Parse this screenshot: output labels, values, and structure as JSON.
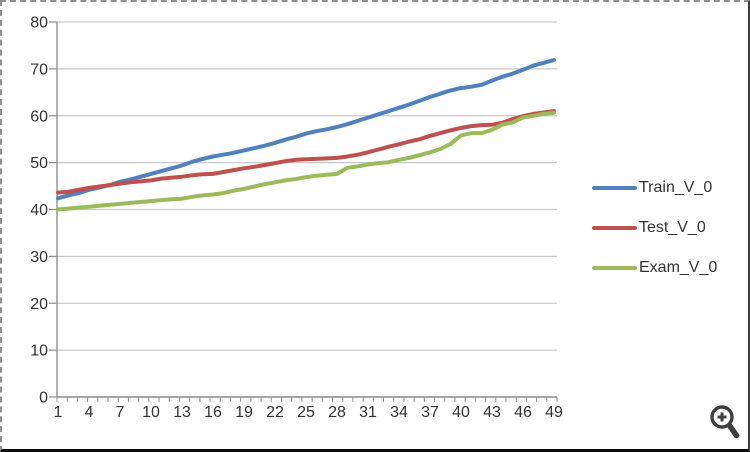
{
  "chart_data": {
    "type": "line",
    "title": "",
    "xlabel": "",
    "ylabel": "",
    "x": [
      1,
      2,
      3,
      4,
      5,
      6,
      7,
      8,
      9,
      10,
      11,
      12,
      13,
      14,
      15,
      16,
      17,
      18,
      19,
      20,
      21,
      22,
      23,
      24,
      25,
      26,
      27,
      28,
      29,
      30,
      31,
      32,
      33,
      34,
      35,
      36,
      37,
      38,
      39,
      40,
      41,
      42,
      43,
      44,
      45,
      46,
      47,
      48,
      49
    ],
    "x_tick_labels": [
      "1",
      "4",
      "7",
      "10",
      "13",
      "16",
      "19",
      "22",
      "25",
      "28",
      "31",
      "34",
      "37",
      "40",
      "43",
      "46",
      "49"
    ],
    "x_tick_step": 3,
    "y_ticks": [
      0,
      10,
      20,
      30,
      40,
      50,
      60,
      70,
      80
    ],
    "ylim": [
      0,
      80
    ],
    "grid": true,
    "legend_position": "right",
    "series": [
      {
        "name": "Train_V_0",
        "color": "#4F81BD",
        "values": [
          42.4,
          43.0,
          43.5,
          44.2,
          44.7,
          45.2,
          45.9,
          46.4,
          47.0,
          47.6,
          48.2,
          48.8,
          49.4,
          50.2,
          50.8,
          51.3,
          51.7,
          52.1,
          52.6,
          53.1,
          53.6,
          54.2,
          54.9,
          55.5,
          56.2,
          56.7,
          57.1,
          57.6,
          58.2,
          58.9,
          59.6,
          60.3,
          61.0,
          61.7,
          62.4,
          63.2,
          64.0,
          64.7,
          65.4,
          65.9,
          66.2,
          66.6,
          67.5,
          68.3,
          69.0,
          69.8,
          70.7,
          71.3,
          71.9
        ]
      },
      {
        "name": "Test_V_0",
        "color": "#C0504D",
        "values": [
          43.6,
          43.8,
          44.2,
          44.6,
          44.9,
          45.2,
          45.5,
          45.8,
          46.0,
          46.2,
          46.6,
          46.8,
          47.0,
          47.3,
          47.5,
          47.6,
          48.0,
          48.4,
          48.8,
          49.1,
          49.5,
          49.9,
          50.3,
          50.6,
          50.7,
          50.8,
          50.9,
          51.0,
          51.3,
          51.7,
          52.2,
          52.8,
          53.4,
          53.9,
          54.5,
          55.0,
          55.7,
          56.3,
          56.9,
          57.4,
          57.8,
          58.0,
          58.1,
          58.5,
          59.3,
          59.9,
          60.4,
          60.7,
          61.0
        ]
      },
      {
        "name": "Exam_V_0",
        "color": "#9BBB59",
        "values": [
          40.0,
          40.2,
          40.4,
          40.6,
          40.8,
          41.0,
          41.2,
          41.4,
          41.6,
          41.8,
          42.0,
          42.2,
          42.3,
          42.7,
          43.0,
          43.2,
          43.5,
          44.0,
          44.4,
          44.9,
          45.4,
          45.8,
          46.2,
          46.5,
          46.9,
          47.2,
          47.4,
          47.6,
          48.9,
          49.2,
          49.6,
          49.9,
          50.1,
          50.6,
          51.0,
          51.6,
          52.2,
          52.9,
          54.0,
          55.8,
          56.3,
          56.3,
          57.0,
          58.1,
          58.6,
          59.6,
          60.0,
          60.4,
          60.6
        ]
      }
    ]
  },
  "legend": {
    "items": [
      {
        "label": "Train_V_0",
        "color": "#4F81BD"
      },
      {
        "label": "Test_V_0",
        "color": "#C0504D"
      },
      {
        "label": "Exam_V_0",
        "color": "#9BBB59"
      }
    ]
  },
  "icons": {
    "zoom_in": {
      "name": "zoom-in-magnifier",
      "color": "#3f3f3f"
    }
  },
  "style_colors": {
    "gridline": "#c9c9c9",
    "axis": "#909090",
    "tick_text": "#333333",
    "background": "#ffffff"
  }
}
